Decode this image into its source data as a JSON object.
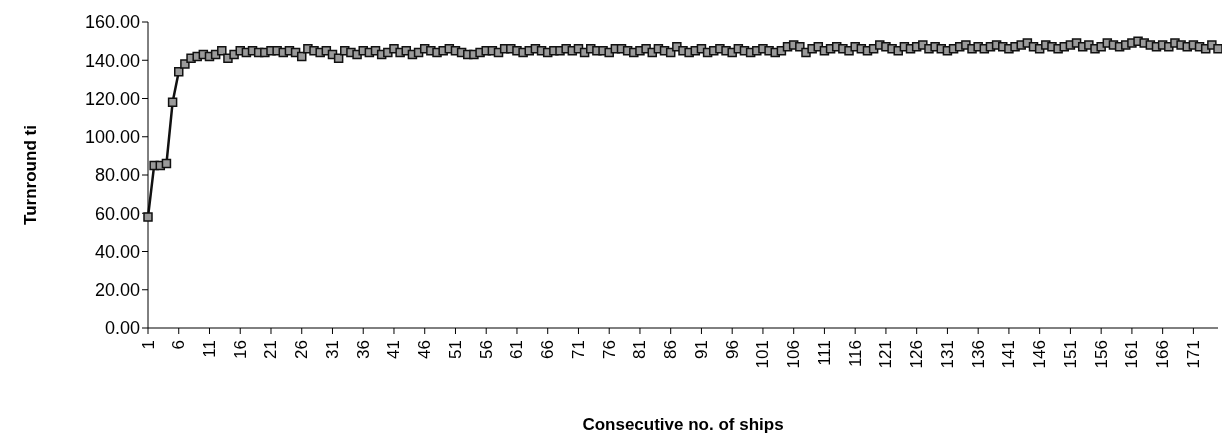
{
  "chart_data": {
    "type": "line",
    "xlabel": "Consecutive no. of ships",
    "ylabel": "Turnround ti",
    "categories": [
      "1",
      null,
      null,
      null,
      null,
      "6",
      null,
      null,
      null,
      null,
      "11",
      null,
      null,
      null,
      null,
      "16",
      null,
      null,
      null,
      null,
      "21",
      null,
      null,
      null,
      null,
      "26",
      null,
      null,
      null,
      null,
      "31",
      null,
      null,
      null,
      null,
      "36",
      null,
      null,
      null,
      null,
      "41",
      null,
      null,
      null,
      null,
      "46",
      null,
      null,
      null,
      null,
      "51",
      null,
      null,
      null,
      null,
      "56",
      null,
      null,
      null,
      null,
      "61",
      null,
      null,
      null,
      null,
      "66",
      null,
      null,
      null,
      null,
      "71",
      null,
      null,
      null,
      null,
      "76",
      null,
      null,
      null,
      null,
      "81",
      null,
      null,
      null,
      null,
      "86",
      null,
      null,
      null,
      null,
      "91",
      null,
      null,
      null,
      null,
      "96",
      null,
      null,
      null,
      null,
      "101",
      null,
      null,
      null,
      null,
      "106",
      null,
      null,
      null,
      null,
      "111",
      null,
      null,
      null,
      null,
      "116",
      null,
      null,
      null,
      null,
      "121",
      null,
      null,
      null,
      null,
      "126",
      null,
      null,
      null,
      null,
      "131",
      null,
      null,
      null,
      null,
      "136",
      null,
      null,
      null,
      null,
      "141",
      null,
      null,
      null,
      null,
      "146",
      null,
      null,
      null,
      null,
      "151",
      null,
      null,
      null,
      null,
      "156",
      null,
      null,
      null,
      null,
      "161",
      null,
      null,
      null,
      null,
      "166",
      null,
      null,
      null,
      null,
      "171",
      null,
      null,
      null,
      null
    ],
    "series": [
      {
        "color": "#111111",
        "values": [
          58,
          85,
          85,
          86,
          118,
          134,
          138,
          141,
          142,
          143,
          142,
          143,
          145,
          141,
          143,
          145,
          144,
          145,
          144,
          144,
          145,
          145,
          144,
          145,
          144,
          142,
          146,
          145,
          144,
          145,
          143,
          141,
          145,
          144,
          143,
          145,
          144,
          145,
          143,
          144,
          146,
          144,
          145,
          143,
          144,
          146,
          145,
          144,
          145,
          146,
          145,
          144,
          143,
          143,
          144,
          145,
          145,
          144,
          146,
          146,
          145,
          144,
          145,
          146,
          145,
          144,
          145,
          145,
          146,
          145,
          146,
          144,
          146,
          145,
          145,
          144,
          146,
          146,
          145,
          144,
          145,
          146,
          144,
          146,
          145,
          144,
          147,
          145,
          144,
          145,
          146,
          144,
          145,
          146,
          145,
          144,
          146,
          145,
          144,
          145,
          146,
          145,
          144,
          145,
          147,
          148,
          147,
          144,
          146,
          147,
          145,
          146,
          147,
          146,
          145,
          147,
          146,
          145,
          146,
          148,
          147,
          146,
          145,
          147,
          146,
          147,
          148,
          146,
          147,
          146,
          145,
          146,
          147,
          148,
          146,
          147,
          146,
          147,
          148,
          147,
          146,
          147,
          148,
          149,
          147,
          146,
          148,
          147,
          146,
          147,
          148,
          149,
          147,
          148,
          146,
          147,
          149,
          148,
          147,
          148,
          149,
          150,
          149,
          148,
          147,
          148,
          147,
          149,
          148,
          147,
          148,
          147,
          146,
          148,
          146
        ]
      }
    ],
    "ylim": [
      0,
      160
    ],
    "yticks": [
      {
        "value": 0,
        "label": "0.00"
      },
      {
        "value": 20,
        "label": "20.00"
      },
      {
        "value": 40,
        "label": "40.00"
      },
      {
        "value": 60,
        "label": "60.00"
      },
      {
        "value": 80,
        "label": "80.00"
      },
      {
        "value": 100,
        "label": "100.00"
      },
      {
        "value": 120,
        "label": "120.00"
      },
      {
        "value": 140,
        "label": "140.00"
      },
      {
        "value": 160,
        "label": "160.00"
      }
    ],
    "grid": false,
    "legend": false,
    "marker": "square",
    "line_style": "solid"
  }
}
